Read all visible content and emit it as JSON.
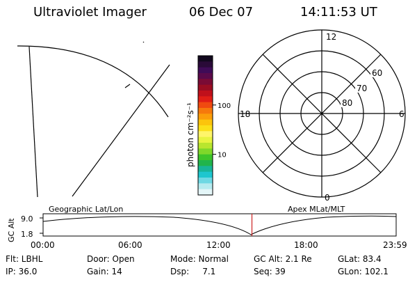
{
  "header": {
    "title": "Ultraviolet Imager",
    "date": "06 Dec 07",
    "time": "14:11:53 UT"
  },
  "colorbar": {
    "unit_label": "photon cm⁻²s⁻¹",
    "ticks": [
      {
        "value": 100,
        "label": "100"
      },
      {
        "value": 10,
        "label": "10"
      }
    ],
    "range": [
      1.5,
      1000
    ],
    "colors_top_to_bottom": [
      "#12081e",
      "#2a0a38",
      "#3f0b57",
      "#5a0a4a",
      "#7a0b35",
      "#9a0d22",
      "#c0101b",
      "#e01e16",
      "#f04a10",
      "#f6790c",
      "#fb9e0a",
      "#fcc40c",
      "#fbe019",
      "#fff56a",
      "#e8f441",
      "#b9e62e",
      "#7fd82a",
      "#3dc52a",
      "#21b44c",
      "#18b59a",
      "#1ec6cf",
      "#6ed8e3",
      "#b6ebef",
      "#e4f6f8"
    ]
  },
  "polar_plot": {
    "clock_labels": {
      "top": "12",
      "left": "18",
      "right": "6",
      "bottom": "0"
    },
    "lat_labels": [
      "80",
      "70",
      "60"
    ]
  },
  "timeline": {
    "ylabel": "GC Alt",
    "yticks": [
      "9.0",
      "1.8"
    ],
    "left_label": "Geographic Lat/Lon",
    "right_label": "Apex MLat/MLT",
    "xticks": [
      "00:00",
      "06:00",
      "12:00",
      "18:00",
      "23:59"
    ],
    "current_time_hours": 14.198,
    "marker_color": "#cc2222"
  },
  "status": {
    "row1": {
      "filter": "Flt: LBHL",
      "door": "Door: Open",
      "mode": "Mode: Normal",
      "gc_alt": "GC Alt: 2.1 Re",
      "glat": "GLat: 83.4"
    },
    "row2": {
      "ip": "IP: 36.0",
      "gain": "Gain: 14",
      "dsp": "Dsp:     7.1",
      "seq": "Seq: 39",
      "glon": "GLon: 102.1"
    }
  }
}
